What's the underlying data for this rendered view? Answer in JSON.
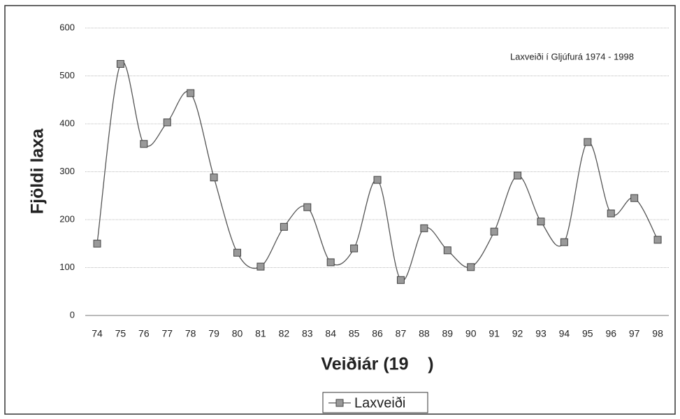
{
  "chart_data": {
    "type": "line",
    "annotation": "Laxveiði í Gljúfurá 1974 - 1998",
    "x_label": "Veiðiár (19    )",
    "y_label": "Fjöldi laxa",
    "categories": [
      "74",
      "75",
      "76",
      "77",
      "78",
      "79",
      "80",
      "81",
      "82",
      "83",
      "84",
      "85",
      "86",
      "87",
      "88",
      "89",
      "90",
      "91",
      "92",
      "93",
      "94",
      "95",
      "96",
      "97",
      "98"
    ],
    "series": [
      {
        "name": "Laxveiði",
        "color": "#555555",
        "values": [
          150,
          525,
          358,
          403,
          464,
          288,
          131,
          102,
          185,
          226,
          111,
          140,
          283,
          74,
          182,
          136,
          101,
          175,
          292,
          196,
          153,
          362,
          213,
          245,
          158
        ]
      }
    ],
    "ylim": [
      0,
      600
    ],
    "yticks": [
      0,
      100,
      200,
      300,
      400,
      500,
      600
    ],
    "grid": true,
    "legend": "bottom"
  }
}
